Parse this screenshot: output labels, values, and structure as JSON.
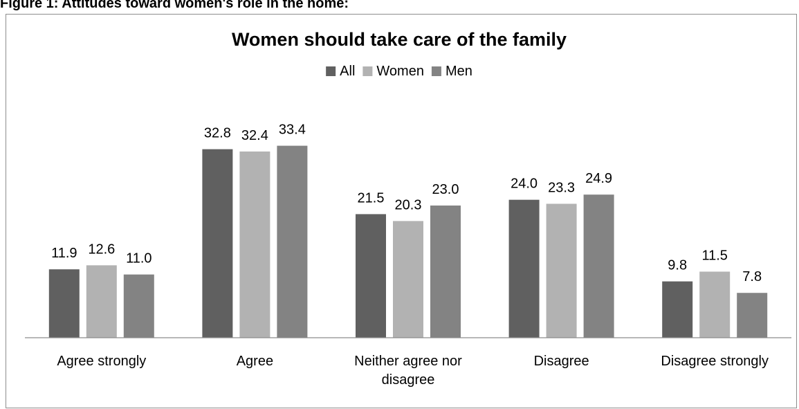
{
  "figure": {
    "caption": "Figure 1: Attitudes toward women's role in the home:"
  },
  "chart_data": {
    "type": "bar",
    "title": "Women should take care of the family",
    "categories": [
      "Agree strongly",
      "Agree",
      "Neither agree nor disagree",
      "Disagree",
      "Disagree strongly"
    ],
    "category_lines": [
      [
        "Agree strongly"
      ],
      [
        "Agree"
      ],
      [
        "Neither agree nor",
        "disagree"
      ],
      [
        "Disagree"
      ],
      [
        "Disagree strongly"
      ]
    ],
    "series": [
      {
        "name": "All",
        "values": [
          11.9,
          32.8,
          21.5,
          24.0,
          9.8
        ],
        "labels": [
          "11.9",
          "32.8",
          "21.5",
          "24.0",
          "9.8"
        ],
        "color": "#606060"
      },
      {
        "name": "Women",
        "values": [
          12.6,
          32.4,
          20.3,
          23.3,
          11.5
        ],
        "labels": [
          "12.6",
          "32.4",
          "20.3",
          "23.3",
          "11.5"
        ],
        "color": "#b2b2b2"
      },
      {
        "name": "Men",
        "values": [
          11.0,
          33.4,
          23.0,
          24.9,
          7.8
        ],
        "labels": [
          "11.0",
          "33.4",
          "23.0",
          "24.9",
          "7.8"
        ],
        "color": "#838383"
      }
    ],
    "xlabel": "",
    "ylabel": "",
    "ylim": [
      0,
      36
    ],
    "grid": false,
    "legend_position": "top",
    "data_labels": true
  }
}
